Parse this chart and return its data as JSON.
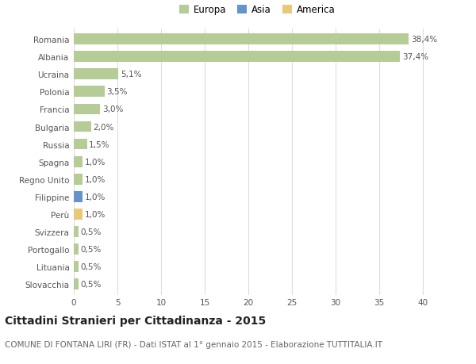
{
  "categories": [
    "Romania",
    "Albania",
    "Ucraina",
    "Polonia",
    "Francia",
    "Bulgaria",
    "Russia",
    "Spagna",
    "Regno Unito",
    "Filippine",
    "Perù",
    "Svizzera",
    "Portogallo",
    "Lituania",
    "Slovacchia"
  ],
  "values": [
    38.4,
    37.4,
    5.1,
    3.5,
    3.0,
    2.0,
    1.5,
    1.0,
    1.0,
    1.0,
    1.0,
    0.5,
    0.5,
    0.5,
    0.5
  ],
  "labels": [
    "38,4%",
    "37,4%",
    "5,1%",
    "3,5%",
    "3,0%",
    "2,0%",
    "1,5%",
    "1,0%",
    "1,0%",
    "1,0%",
    "1,0%",
    "0,5%",
    "0,5%",
    "0,5%",
    "0,5%"
  ],
  "colors": [
    "#b5cc96",
    "#b5cc96",
    "#b5cc96",
    "#b5cc96",
    "#b5cc96",
    "#b5cc96",
    "#b5cc96",
    "#b5cc96",
    "#b5cc96",
    "#6494c8",
    "#e8c97a",
    "#b5cc96",
    "#b5cc96",
    "#b5cc96",
    "#b5cc96"
  ],
  "legend_labels": [
    "Europa",
    "Asia",
    "America"
  ],
  "legend_colors": [
    "#b5cc96",
    "#6494c8",
    "#e8c97a"
  ],
  "title": "Cittadini Stranieri per Cittadinanza - 2015",
  "subtitle": "COMUNE DI FONTANA LIRI (FR) - Dati ISTAT al 1° gennaio 2015 - Elaborazione TUTTITALIA.IT",
  "xlim": [
    0,
    42
  ],
  "xticks": [
    0,
    5,
    10,
    15,
    20,
    25,
    30,
    35,
    40
  ],
  "bg_color": "#ffffff",
  "plot_bg_color": "#ffffff",
  "grid_color": "#dddddd",
  "title_fontsize": 10,
  "subtitle_fontsize": 7.5,
  "label_fontsize": 7.5,
  "tick_fontsize": 7.5,
  "legend_fontsize": 8.5
}
